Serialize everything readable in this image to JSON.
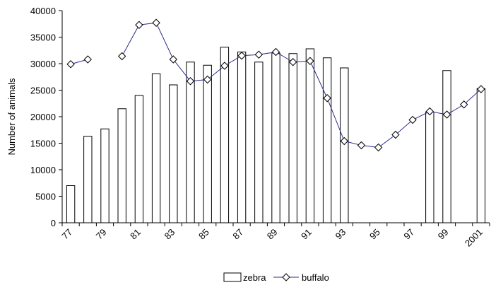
{
  "chart_data": {
    "type": "bar",
    "ylabel": "Number of animals",
    "ylim": [
      0,
      40000
    ],
    "yticks": [
      0,
      5000,
      10000,
      15000,
      20000,
      25000,
      30000,
      35000,
      40000
    ],
    "categories": [
      "77",
      "78",
      "79",
      "80",
      "81",
      "82",
      "83",
      "84",
      "85",
      "86",
      "87",
      "88",
      "89",
      "90",
      "91",
      "92",
      "93",
      "94",
      "95",
      "96",
      "97",
      "98",
      "99",
      "2000",
      "2001"
    ],
    "tick_labels": [
      "77",
      "79",
      "81",
      "83",
      "85",
      "87",
      "89",
      "91",
      "93",
      "95",
      "97",
      "99",
      "2001"
    ],
    "series": [
      {
        "name": "zebra",
        "type": "bar",
        "values": [
          7000,
          16300,
          17700,
          21500,
          24000,
          28100,
          26000,
          30300,
          29700,
          33100,
          32200,
          30300,
          32000,
          31900,
          32800,
          31100,
          29200,
          null,
          null,
          null,
          null,
          20900,
          28700,
          null,
          25300
        ]
      },
      {
        "name": "buffalo",
        "type": "line",
        "values": [
          29900,
          30800,
          null,
          31400,
          37300,
          37700,
          30800,
          26700,
          27000,
          29600,
          31500,
          31700,
          32200,
          30300,
          30500,
          23500,
          15400,
          14600,
          14200,
          16600,
          19400,
          21000,
          20400,
          22300,
          25200
        ]
      }
    ],
    "legend": {
      "position": "bottom-center",
      "entries": [
        "zebra",
        "buffalo"
      ]
    },
    "colors": {
      "line": "#2b2b8c",
      "bar_fill": "#ffffff",
      "bar_stroke": "#000000"
    },
    "grid": false
  }
}
